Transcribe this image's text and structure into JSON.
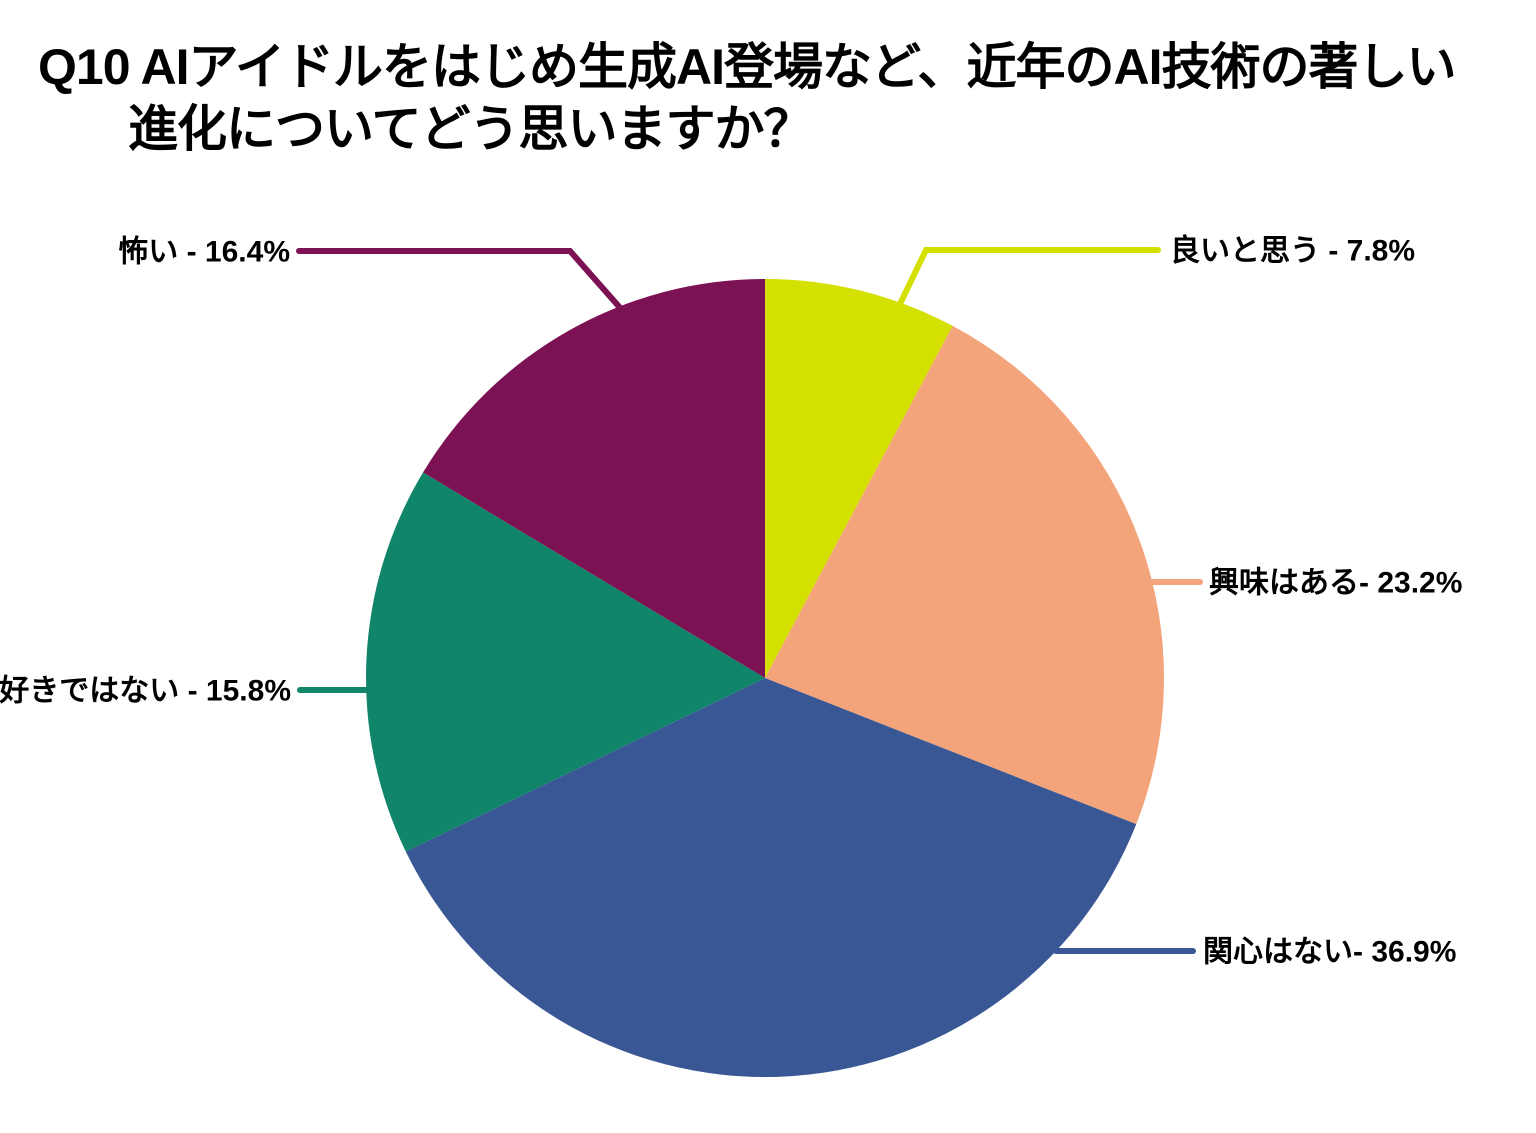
{
  "title": {
    "full": "Q10 AIアイドルをはじめ生成AI登場など、近年のAI技術の著しい進化についてどう思いますか？",
    "line1": "Q10 AIアイドルをはじめ生成AI登場など、近年のAI技術の著しい",
    "line2": "進化についてどう思いますか？"
  },
  "chart_data": {
    "type": "pie",
    "title": "Q10 AIアイドルをはじめ生成AI登場など、近年のAI技術の著しい進化についてどう思いますか？",
    "start_angle_deg": 0,
    "direction": "clockwise",
    "legend": "none",
    "labels_style": "outside-with-leader-lines",
    "slices": [
      {
        "key": "good",
        "label": "良いと思う",
        "value": 7.8,
        "display_label": "良いと思う - 7.8%",
        "color": "#d3e000"
      },
      {
        "key": "interested",
        "label": "興味はある",
        "value": 23.2,
        "display_label": "興味はある- 23.2%",
        "color": "#f4a47a"
      },
      {
        "key": "no-interest",
        "label": "関心はない",
        "value": 36.9,
        "display_label": "関心はない- 36.9%",
        "color": "#3a5795"
      },
      {
        "key": "dislike",
        "label": "好きではない",
        "value": 15.8,
        "display_label": "好きではない - 15.8%",
        "color": "#11856a"
      },
      {
        "key": "scary",
        "label": "怖い",
        "value": 16.4,
        "display_label": "怖い - 16.4%",
        "color": "#7c1153"
      }
    ]
  }
}
